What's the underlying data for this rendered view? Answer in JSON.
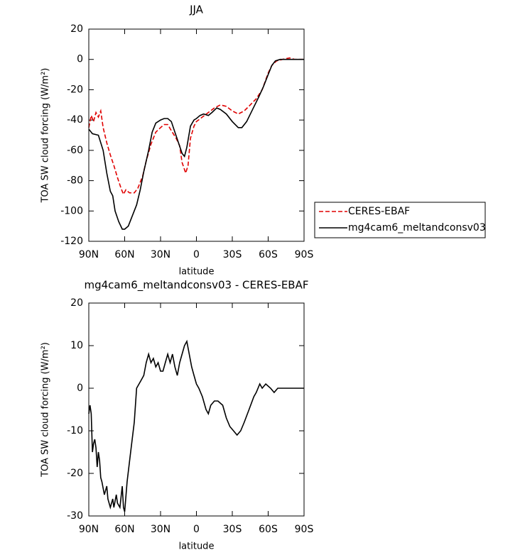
{
  "chart_data": [
    {
      "type": "line",
      "title": "JJA",
      "xlabel": "latitude",
      "ylabel": "TOA SW cloud forcing (W/m²)",
      "xlim": [
        90,
        -90
      ],
      "ylim": [
        -120,
        20
      ],
      "xticks": [
        {
          "value": 90,
          "label": "90N"
        },
        {
          "value": 60,
          "label": "60N"
        },
        {
          "value": 30,
          "label": "30N"
        },
        0,
        {
          "value": -30,
          "label": "30S"
        },
        {
          "value": -60,
          "label": "60S"
        },
        {
          "value": -90,
          "label": "90S"
        }
      ],
      "yticks": [
        -120,
        -100,
        -80,
        -60,
        -40,
        -20,
        0,
        20
      ],
      "legend": "outside-right",
      "series": [
        {
          "name": "CERES-EBAF",
          "color": "#e00000",
          "style": "dashed",
          "x": [
            90,
            88,
            86,
            84,
            82,
            80,
            78,
            75,
            72,
            69,
            66,
            63,
            61,
            59,
            56,
            52,
            49,
            45,
            42,
            38,
            34,
            30,
            27,
            24,
            21,
            17,
            14,
            12,
            9,
            7,
            5,
            2,
            0,
            -5,
            -10,
            -15,
            -20,
            -25,
            -30,
            -35,
            -40,
            -45,
            -50,
            -55,
            -60,
            -63,
            -67,
            -72,
            -78,
            -82,
            -90
          ],
          "values": [
            -45,
            -37,
            -41,
            -35,
            -38,
            -34,
            -45,
            -55,
            -63,
            -70,
            -78,
            -85,
            -89,
            -86,
            -88,
            -88,
            -85,
            -77,
            -67,
            -56,
            -48,
            -45,
            -43,
            -43,
            -47,
            -52,
            -57,
            -68,
            -75,
            -70,
            -52,
            -44,
            -41,
            -38,
            -35,
            -32,
            -30,
            -31,
            -34,
            -36,
            -34,
            -30,
            -26,
            -20,
            -9,
            -4,
            -1,
            0,
            1,
            0,
            0
          ]
        },
        {
          "name": "mg4cam6_meltandconsv03",
          "color": "#000000",
          "style": "solid",
          "x": [
            90,
            87,
            82,
            78,
            75,
            72,
            70,
            68,
            65,
            62,
            60,
            57,
            54,
            50,
            47,
            44,
            40,
            37,
            34,
            30,
            27,
            24,
            21,
            18,
            15,
            12,
            10,
            8,
            5,
            2,
            0,
            -3,
            -6,
            -10,
            -13,
            -17,
            -20,
            -25,
            -30,
            -35,
            -38,
            -42,
            -47,
            -52,
            -56,
            -60,
            -63,
            -66,
            -70,
            -75,
            -80,
            -85,
            -90
          ],
          "values": [
            -46,
            -49,
            -50,
            -60,
            -75,
            -87,
            -90,
            -100,
            -107,
            -112,
            -112,
            -110,
            -104,
            -96,
            -86,
            -74,
            -60,
            -48,
            -42,
            -40,
            -39,
            -39,
            -41,
            -48,
            -55,
            -62,
            -64,
            -58,
            -44,
            -40,
            -39,
            -37,
            -36,
            -37,
            -35,
            -32,
            -33,
            -36,
            -41,
            -45,
            -45,
            -41,
            -33,
            -25,
            -18,
            -10,
            -4,
            -1,
            0,
            0,
            0,
            0,
            0
          ]
        }
      ]
    },
    {
      "type": "line",
      "title": "mg4cam6_meltandconsv03 - CERES-EBAF",
      "xlabel": "latitude",
      "ylabel": "TOA SW cloud forcing (W/m²)",
      "xlim": [
        90,
        -90
      ],
      "ylim": [
        -30,
        20
      ],
      "xticks": [
        {
          "value": 90,
          "label": "90N"
        },
        {
          "value": 60,
          "label": "60N"
        },
        {
          "value": 30,
          "label": "30N"
        },
        0,
        {
          "value": -30,
          "label": "30S"
        },
        {
          "value": -60,
          "label": "60S"
        },
        {
          "value": -90,
          "label": "90S"
        }
      ],
      "yticks": [
        -30,
        -20,
        -10,
        0,
        10,
        20
      ],
      "series": [
        {
          "color": "#000000",
          "style": "solid",
          "x": [
            90,
            89,
            88,
            87,
            86,
            85,
            84,
            83,
            82,
            81,
            80,
            79,
            77,
            76,
            75,
            74,
            72,
            71,
            70,
            69,
            67,
            66,
            64,
            62,
            61,
            60,
            58,
            55,
            52,
            50,
            48,
            46,
            44,
            42,
            40,
            38,
            36,
            34,
            32,
            30,
            28,
            26,
            24,
            22,
            20,
            18,
            16,
            14,
            12,
            10,
            8,
            6,
            4,
            2,
            0,
            -2,
            -5,
            -8,
            -10,
            -12,
            -15,
            -18,
            -22,
            -25,
            -28,
            -31,
            -34,
            -37,
            -40,
            -44,
            -48,
            -50,
            -53,
            -55,
            -58,
            -62,
            -65,
            -68,
            -72,
            -76,
            -80,
            -90
          ],
          "values": [
            -6,
            -4,
            -6,
            -15,
            -13,
            -12,
            -14,
            -18.5,
            -15,
            -17,
            -21,
            -22,
            -25,
            -24,
            -23,
            -26,
            -28,
            -27,
            -26,
            -28,
            -25,
            -27,
            -28,
            -23,
            -28,
            -29,
            -22,
            -15,
            -8,
            0,
            1,
            2,
            3,
            6,
            8,
            6,
            7,
            5,
            6,
            4,
            4,
            6,
            8,
            6,
            8,
            5,
            3,
            6,
            8,
            10,
            11,
            8,
            5,
            3,
            1,
            0,
            -2,
            -5,
            -6,
            -4,
            -3,
            -3,
            -4,
            -7,
            -9,
            -10,
            -11,
            -10,
            -8,
            -5,
            -2,
            -1,
            1,
            0,
            1,
            0,
            -1,
            0,
            0,
            0,
            0,
            0
          ]
        }
      ]
    }
  ]
}
